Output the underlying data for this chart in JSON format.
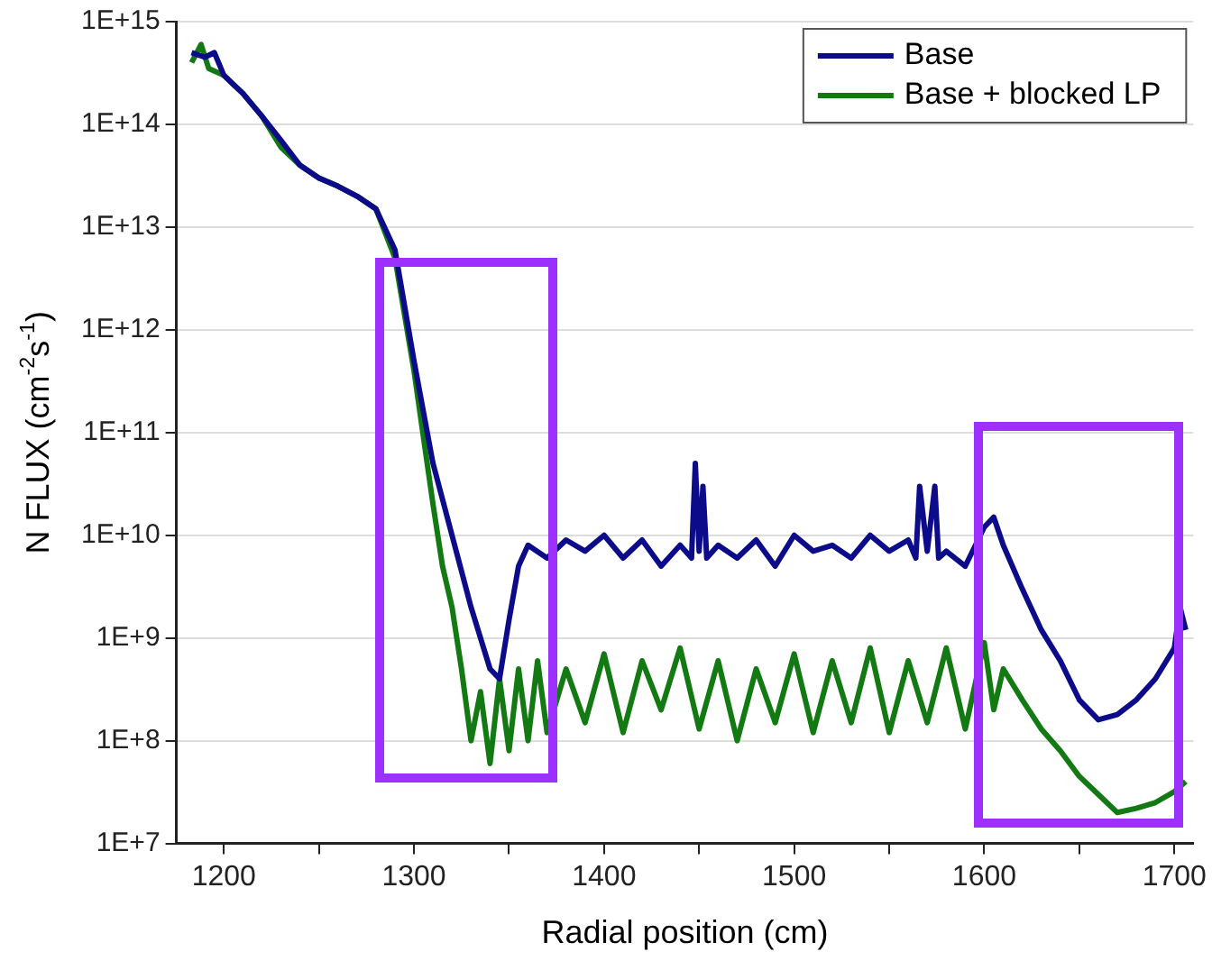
{
  "chart_data": {
    "type": "line",
    "xlabel": "Radial position (cm)",
    "ylabel": "N FLUX (cm$^{-2}$s$^{-1}$)",
    "log": "y",
    "grid": "y",
    "legend": "top right",
    "marker": "none",
    "line_style": "solid",
    "xlim": [
      1175,
      1710
    ],
    "xticks": [
      1200,
      {
        "value": 1250,
        "label": null
      },
      1300,
      {
        "value": 1350,
        "label": null
      },
      1400,
      {
        "value": 1450,
        "label": null
      },
      1500,
      {
        "value": 1550,
        "label": null
      },
      1600,
      {
        "value": 1650,
        "label": null
      },
      1700
    ],
    "ylim": [
      10000000.0,
      1000000000000000.0
    ],
    "yticks": [
      {
        "value": 10000000.0,
        "label": "1E+7"
      },
      {
        "value": 100000000.0,
        "label": "1E+8"
      },
      {
        "value": 1000000000.0,
        "label": "1E+9"
      },
      {
        "value": 10000000000.0,
        "label": "1E+10"
      },
      {
        "value": 100000000000.0,
        "label": "1E+11"
      },
      {
        "value": 1000000000000.0,
        "label": "1E+12"
      },
      {
        "value": 10000000000000.0,
        "label": "1E+13"
      },
      {
        "value": 100000000000000.0,
        "label": "1E+14"
      },
      {
        "value": 1000000000000000.0,
        "label": "1E+15"
      }
    ],
    "series": [
      {
        "name": "Base",
        "color": "#0c0c8a",
        "x": [
          1183,
          1190,
          1195,
          1200,
          1210,
          1220,
          1230,
          1240,
          1250,
          1260,
          1270,
          1280,
          1290,
          1300,
          1310,
          1320,
          1330,
          1340,
          1345,
          1350,
          1355,
          1360,
          1370,
          1380,
          1390,
          1400,
          1410,
          1420,
          1430,
          1440,
          1446,
          1448,
          1450,
          1452,
          1454,
          1460,
          1470,
          1480,
          1490,
          1500,
          1510,
          1520,
          1530,
          1540,
          1550,
          1560,
          1564,
          1566,
          1570,
          1574,
          1576,
          1580,
          1590,
          1600,
          1605,
          1610,
          1620,
          1630,
          1640,
          1650,
          1660,
          1670,
          1680,
          1690,
          1700,
          1703,
          1706
        ],
        "values": [
          500000000000000.0,
          450000000000000.0,
          500000000000000.0,
          300000000000000.0,
          200000000000000.0,
          120000000000000.0,
          70000000000000.0,
          40000000000000.0,
          30000000000000.0,
          25000000000000.0,
          20000000000000.0,
          15000000000000.0,
          6000000000000.0,
          500000000000.0,
          50000000000.0,
          10000000000.0,
          2000000000.0,
          500000000.0,
          400000000.0,
          1500000000.0,
          5000000000.0,
          8000000000.0,
          6000000000.0,
          9000000000.0,
          7000000000.0,
          10000000000.0,
          6000000000.0,
          9000000000.0,
          5000000000.0,
          8000000000.0,
          6000000000.0,
          50000000000.0,
          7000000000.0,
          30000000000.0,
          6000000000.0,
          8000000000.0,
          6000000000.0,
          9000000000.0,
          5000000000.0,
          10000000000.0,
          7000000000.0,
          8000000000.0,
          6000000000.0,
          10000000000.0,
          7000000000.0,
          9000000000.0,
          6000000000.0,
          30000000000.0,
          7000000000.0,
          30000000000.0,
          6000000000.0,
          7000000000.0,
          5000000000.0,
          12000000000.0,
          15000000000.0,
          8000000000.0,
          3000000000.0,
          1200000000.0,
          600000000.0,
          250000000.0,
          160000000.0,
          180000000.0,
          250000000.0,
          400000000.0,
          800000000.0,
          2000000000.0,
          1200000000.0
        ]
      },
      {
        "name": "Base + blocked LP",
        "color": "#137a13",
        "x": [
          1183,
          1188,
          1192,
          1200,
          1210,
          1220,
          1230,
          1240,
          1250,
          1260,
          1270,
          1280,
          1290,
          1300,
          1310,
          1315,
          1320,
          1325,
          1330,
          1335,
          1340,
          1345,
          1350,
          1355,
          1360,
          1365,
          1370,
          1380,
          1390,
          1400,
          1410,
          1420,
          1430,
          1440,
          1450,
          1460,
          1470,
          1480,
          1490,
          1500,
          1510,
          1520,
          1530,
          1540,
          1550,
          1560,
          1570,
          1580,
          1590,
          1600,
          1605,
          1610,
          1620,
          1630,
          1640,
          1650,
          1660,
          1670,
          1680,
          1690,
          1700,
          1706
        ],
        "values": [
          400000000000000.0,
          600000000000000.0,
          350000000000000.0,
          300000000000000.0,
          200000000000000.0,
          120000000000000.0,
          60000000000000.0,
          40000000000000.0,
          30000000000000.0,
          25000000000000.0,
          20000000000000.0,
          15000000000000.0,
          5000000000000.0,
          400000000000.0,
          20000000000.0,
          5000000000.0,
          2000000000.0,
          500000000.0,
          100000000.0,
          300000000.0,
          60000000.0,
          400000000.0,
          80000000.0,
          500000000.0,
          100000000.0,
          600000000.0,
          120000000.0,
          500000000.0,
          150000000.0,
          700000000.0,
          120000000.0,
          600000000.0,
          200000000.0,
          800000000.0,
          130000000.0,
          600000000.0,
          100000000.0,
          500000000.0,
          150000000.0,
          700000000.0,
          120000000.0,
          600000000.0,
          150000000.0,
          800000000.0,
          120000000.0,
          600000000.0,
          150000000.0,
          800000000.0,
          130000000.0,
          900000000.0,
          200000000.0,
          500000000.0,
          250000000.0,
          130000000.0,
          80000000.0,
          45000000.0,
          30000000.0,
          20000000.0,
          22000000.0,
          25000000.0,
          32000000.0,
          40000000.0
        ]
      }
    ]
  }
}
